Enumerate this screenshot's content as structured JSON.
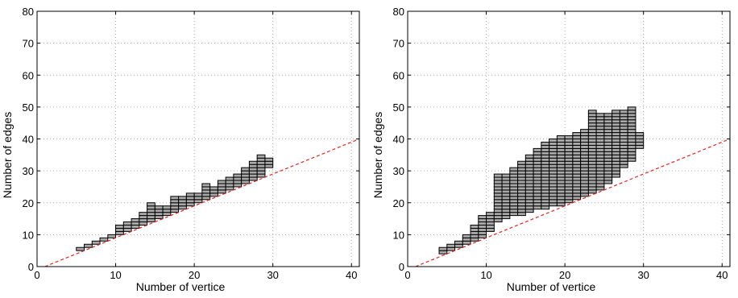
{
  "chart_data": [
    {
      "type": "heatmap",
      "title": "",
      "xlabel": "Number of vertice",
      "ylabel": "Number of edges",
      "xlim": [
        0,
        41
      ],
      "ylim": [
        0,
        80
      ],
      "xticks": [
        0,
        10,
        20,
        30,
        40
      ],
      "yticks": [
        0,
        10,
        20,
        30,
        40,
        50,
        60,
        70,
        80
      ],
      "grid": true,
      "reference_line": {
        "style": "dashed",
        "color": "#e8231f",
        "x": [
          1,
          41
        ],
        "y": [
          0,
          40
        ]
      },
      "cell_color": "#a9a9a9",
      "columns": [
        {
          "x": 5,
          "ymin": 5,
          "ymax": 6
        },
        {
          "x": 6,
          "ymin": 6,
          "ymax": 7
        },
        {
          "x": 7,
          "ymin": 7,
          "ymax": 8
        },
        {
          "x": 8,
          "ymin": 8,
          "ymax": 9
        },
        {
          "x": 9,
          "ymin": 9,
          "ymax": 10
        },
        {
          "x": 10,
          "ymin": 10,
          "ymax": 13
        },
        {
          "x": 11,
          "ymin": 11,
          "ymax": 14
        },
        {
          "x": 12,
          "ymin": 12,
          "ymax": 15
        },
        {
          "x": 13,
          "ymin": 13,
          "ymax": 17
        },
        {
          "x": 14,
          "ymin": 14,
          "ymax": 20
        },
        {
          "x": 15,
          "ymin": 15,
          "ymax": 19
        },
        {
          "x": 16,
          "ymin": 16,
          "ymax": 19
        },
        {
          "x": 17,
          "ymin": 17,
          "ymax": 22
        },
        {
          "x": 18,
          "ymin": 18,
          "ymax": 22
        },
        {
          "x": 19,
          "ymin": 19,
          "ymax": 23
        },
        {
          "x": 20,
          "ymin": 20,
          "ymax": 23
        },
        {
          "x": 21,
          "ymin": 21,
          "ymax": 26
        },
        {
          "x": 22,
          "ymin": 22,
          "ymax": 25
        },
        {
          "x": 23,
          "ymin": 23,
          "ymax": 27
        },
        {
          "x": 24,
          "ymin": 24,
          "ymax": 28
        },
        {
          "x": 25,
          "ymin": 25,
          "ymax": 29
        },
        {
          "x": 26,
          "ymin": 26,
          "ymax": 31
        },
        {
          "x": 27,
          "ymin": 27,
          "ymax": 33
        },
        {
          "x": 28,
          "ymin": 28,
          "ymax": 35
        },
        {
          "x": 29,
          "ymin": 31,
          "ymax": 34
        }
      ]
    },
    {
      "type": "heatmap",
      "title": "",
      "xlabel": "Number of vertice",
      "ylabel": "Number of edges",
      "xlim": [
        0,
        41
      ],
      "ylim": [
        0,
        80
      ],
      "xticks": [
        0,
        10,
        20,
        30,
        40
      ],
      "yticks": [
        0,
        10,
        20,
        30,
        40,
        50,
        60,
        70,
        80
      ],
      "grid": true,
      "reference_line": {
        "style": "dashed",
        "color": "#e8231f",
        "x": [
          1,
          41
        ],
        "y": [
          0,
          40
        ]
      },
      "cell_color": "#a9a9a9",
      "columns": [
        {
          "x": 4,
          "ymin": 4,
          "ymax": 6
        },
        {
          "x": 5,
          "ymin": 5,
          "ymax": 7
        },
        {
          "x": 6,
          "ymin": 6,
          "ymax": 8
        },
        {
          "x": 7,
          "ymin": 7,
          "ymax": 10
        },
        {
          "x": 8,
          "ymin": 8,
          "ymax": 13
        },
        {
          "x": 9,
          "ymin": 9,
          "ymax": 16
        },
        {
          "x": 10,
          "ymin": 11,
          "ymax": 17
        },
        {
          "x": 11,
          "ymin": 14,
          "ymax": 29
        },
        {
          "x": 12,
          "ymin": 15,
          "ymax": 29
        },
        {
          "x": 13,
          "ymin": 16,
          "ymax": 31
        },
        {
          "x": 14,
          "ymin": 16,
          "ymax": 33
        },
        {
          "x": 15,
          "ymin": 17,
          "ymax": 35
        },
        {
          "x": 16,
          "ymin": 18,
          "ymax": 37
        },
        {
          "x": 17,
          "ymin": 18,
          "ymax": 39
        },
        {
          "x": 18,
          "ymin": 19,
          "ymax": 40
        },
        {
          "x": 19,
          "ymin": 19,
          "ymax": 41
        },
        {
          "x": 20,
          "ymin": 20,
          "ymax": 41
        },
        {
          "x": 21,
          "ymin": 21,
          "ymax": 42
        },
        {
          "x": 22,
          "ymin": 22,
          "ymax": 43
        },
        {
          "x": 23,
          "ymin": 23,
          "ymax": 49
        },
        {
          "x": 24,
          "ymin": 24,
          "ymax": 48
        },
        {
          "x": 25,
          "ymin": 26,
          "ymax": 48
        },
        {
          "x": 26,
          "ymin": 28,
          "ymax": 49
        },
        {
          "x": 27,
          "ymin": 31,
          "ymax": 49
        },
        {
          "x": 28,
          "ymin": 33,
          "ymax": 50
        },
        {
          "x": 29,
          "ymin": 37,
          "ymax": 42
        }
      ]
    }
  ]
}
